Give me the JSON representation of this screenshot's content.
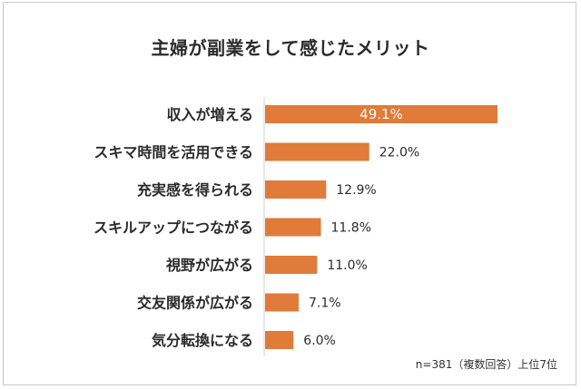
{
  "chart_data": {
    "type": "bar",
    "orientation": "horizontal",
    "title": "主婦が副業をして感じたメリット",
    "categories": [
      "収入が増える",
      "スキマ時間を活用できる",
      "充実感を得られる",
      "スキルアップにつながる",
      "視野が広がる",
      "交友関係が広がる",
      "気分転換になる"
    ],
    "values": [
      49.1,
      22.0,
      12.9,
      11.8,
      11.0,
      7.1,
      6.0
    ],
    "value_labels": [
      "49.1%",
      "22.0%",
      "12.9%",
      "11.8%",
      "11.0%",
      "7.1%",
      "6.0%"
    ],
    "xlim": [
      0,
      49.1
    ],
    "bar_color": "#e07b39",
    "grid": false,
    "legend": "none",
    "note": "n=381（複数回答）上位7位"
  }
}
